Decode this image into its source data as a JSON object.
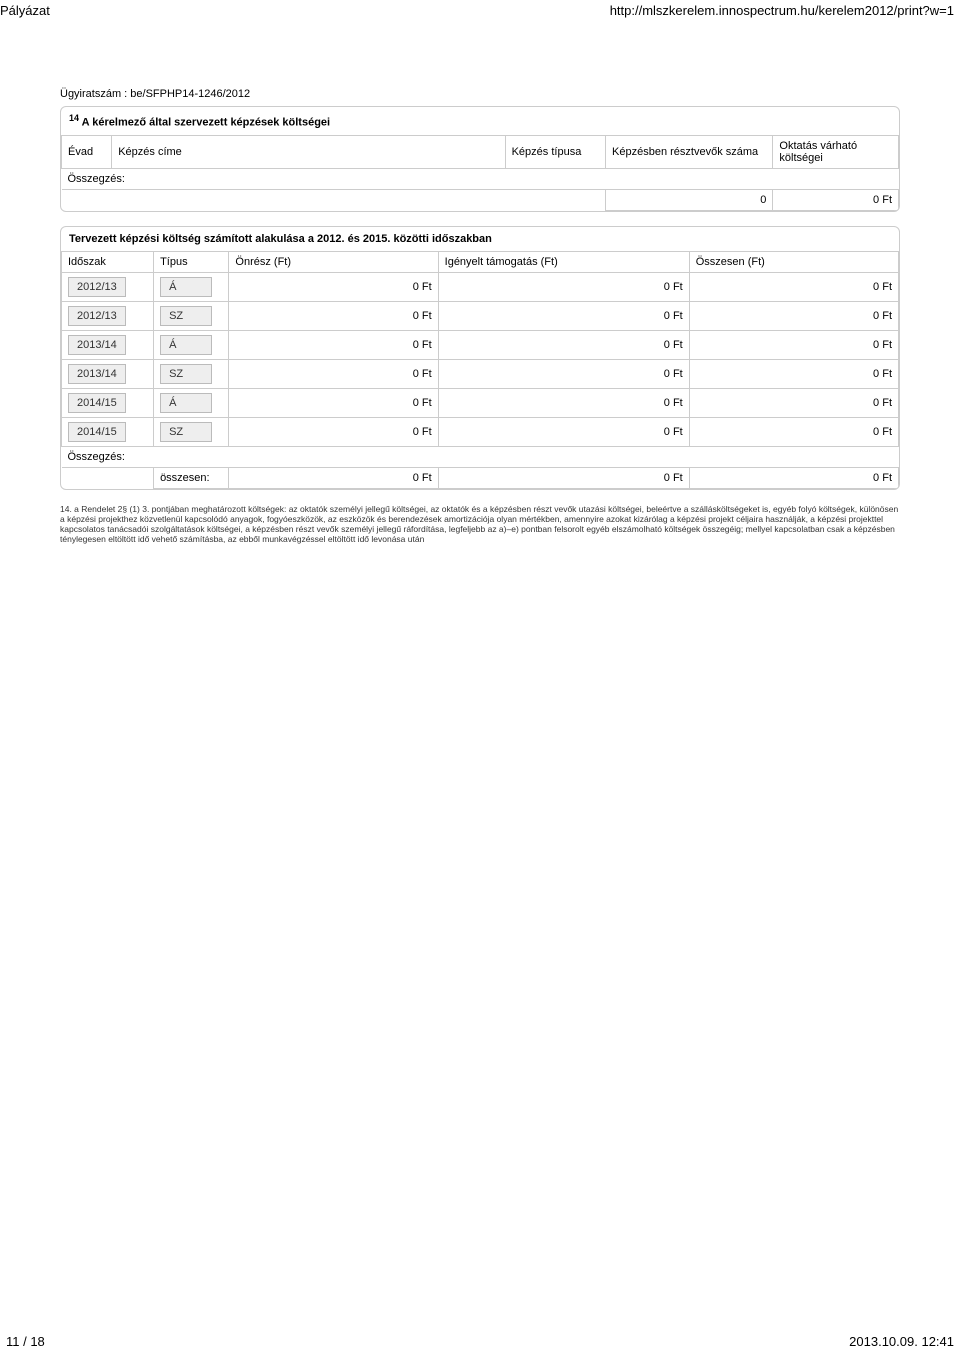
{
  "header": {
    "left": "Pályázat",
    "right": "http://mlszkerelem.innospectrum.hu/kerelem2012/print?w=1"
  },
  "case_number": "Ügyiratszám : be/SFPHP14-1246/2012",
  "panel1": {
    "title_sup": "14",
    "title": " A kérelmező által szervezett képzések költségei",
    "columns": {
      "c1": "Évad",
      "c2": "Képzés címe",
      "c3": "Képzés típusa",
      "c4": "Képzésben résztvevők száma",
      "c5": "Oktatás várható költségei"
    },
    "summary_label": "Összegzés:",
    "sum_participants": "0",
    "sum_cost": "0 Ft"
  },
  "panel2": {
    "title": "Tervezett képzési költség számított alakulása a 2012. és 2015. közötti időszakban",
    "columns": {
      "c1": "Időszak",
      "c2": "Típus",
      "c3": "Önrész (Ft)",
      "c4": "Igényelt támogatás (Ft)",
      "c5": "Összesen (Ft)"
    },
    "rows": [
      {
        "period": "2012/13",
        "type": "Á",
        "own": "0 Ft",
        "req": "0 Ft",
        "total": "0 Ft"
      },
      {
        "period": "2012/13",
        "type": "SZ",
        "own": "0 Ft",
        "req": "0 Ft",
        "total": "0 Ft"
      },
      {
        "period": "2013/14",
        "type": "Á",
        "own": "0 Ft",
        "req": "0 Ft",
        "total": "0 Ft"
      },
      {
        "period": "2013/14",
        "type": "SZ",
        "own": "0 Ft",
        "req": "0 Ft",
        "total": "0 Ft"
      },
      {
        "period": "2014/15",
        "type": "Á",
        "own": "0 Ft",
        "req": "0 Ft",
        "total": "0 Ft"
      },
      {
        "period": "2014/15",
        "type": "SZ",
        "own": "0 Ft",
        "req": "0 Ft",
        "total": "0 Ft"
      }
    ],
    "summary_label": "Összegzés:",
    "total_label": "összesen:",
    "sum_own": "0 Ft",
    "sum_req": "0 Ft",
    "sum_total": "0 Ft"
  },
  "footnote": "14. a Rendelet 2§ (1) 3. pontjában meghatározott költségek: az oktatók személyi jellegű költségei, az oktatók és a képzésben részt vevők utazási költségei, beleértve a szállásköltségeket is, egyéb folyó költségek, különösen a képzési projekthez közvetlenül kapcsolódó anyagok, fogyóeszközök, az eszközök és berendezések amortizációja olyan mértékben, amennyire azokat kizárólag a képzési projekt céljaira használják, a képzési projekttel kapcsolatos tanácsadói szolgáltatások költségei, a képzésben részt vevők személyi jellegű ráfordítása, legfeljebb az a)–e) pontban felsorolt egyéb elszámolható költségek összegéig; mellyel kapcsolatban csak a képzésben ténylegesen eltöltött idő vehető számításba, az ebből munkavégzéssel eltöltött idő levonása után",
  "footer": {
    "left": "11 / 18",
    "right": "2013.10.09. 12:41"
  }
}
